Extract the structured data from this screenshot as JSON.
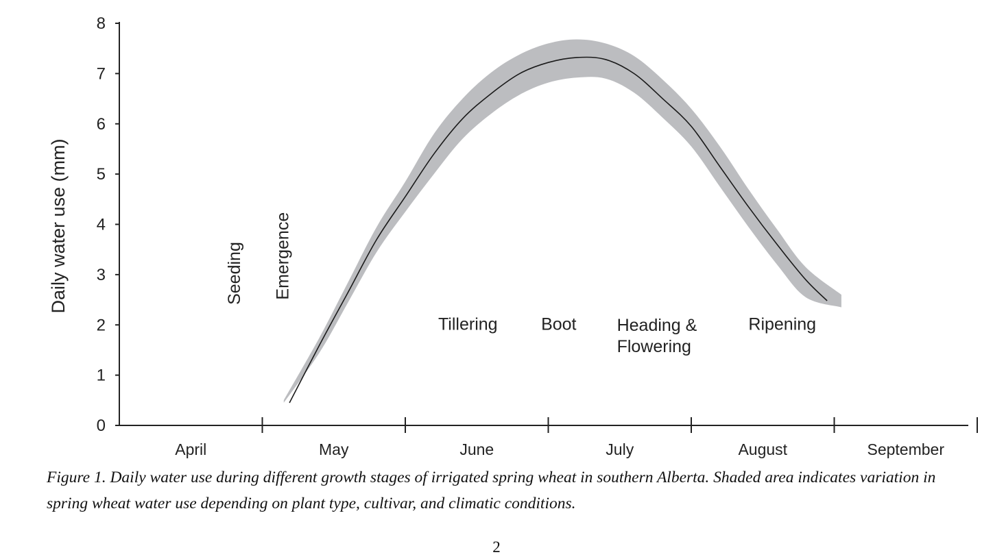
{
  "chart_data": {
    "type": "area",
    "title": "",
    "xlabel": "",
    "ylabel": "Daily water use  (mm)",
    "ylim": [
      0,
      8
    ],
    "yticks": [
      0,
      1,
      2,
      3,
      4,
      5,
      6,
      7,
      8
    ],
    "x_unit": "month",
    "xlim": [
      0,
      6
    ],
    "months": [
      "April",
      "May",
      "June",
      "July",
      "August",
      "September"
    ],
    "grid": false,
    "legend": "none",
    "mean_line": {
      "x": [
        1.19,
        1.4,
        1.6,
        1.8,
        2.0,
        2.2,
        2.4,
        2.6,
        2.8,
        3.0,
        3.2,
        3.4,
        3.6,
        3.8,
        4.0,
        4.2,
        4.4,
        4.6,
        4.8,
        4.95
      ],
      "y": [
        0.45,
        1.6,
        2.65,
        3.7,
        4.55,
        5.4,
        6.1,
        6.6,
        7.0,
        7.22,
        7.32,
        7.28,
        7.0,
        6.5,
        5.95,
        5.15,
        4.35,
        3.6,
        2.9,
        2.48
      ]
    },
    "variation_band": {
      "x": [
        1.15,
        1.4,
        1.6,
        1.8,
        2.0,
        2.2,
        2.4,
        2.6,
        2.8,
        3.0,
        3.2,
        3.4,
        3.6,
        3.8,
        4.0,
        4.2,
        4.4,
        4.6,
        4.8,
        5.05
      ],
      "upper": [
        0.5,
        1.75,
        2.85,
        3.95,
        4.85,
        5.8,
        6.5,
        7.02,
        7.38,
        7.6,
        7.68,
        7.6,
        7.35,
        6.88,
        6.3,
        5.55,
        4.7,
        3.9,
        3.15,
        2.6
      ],
      "lower": [
        0.45,
        1.45,
        2.45,
        3.45,
        4.25,
        5.0,
        5.7,
        6.2,
        6.58,
        6.82,
        6.92,
        6.9,
        6.62,
        6.12,
        5.55,
        4.75,
        3.95,
        3.2,
        2.55,
        2.35
      ]
    },
    "stages": [
      {
        "label": "Seeding",
        "x": 0.8,
        "y": 2.4,
        "vertical": true
      },
      {
        "label": "Emergence",
        "x": 1.14,
        "y": 2.5,
        "vertical": true
      },
      {
        "label": "Tillering",
        "x": 2.23,
        "y": 1.9
      },
      {
        "label": "Boot",
        "x": 2.95,
        "y": 1.9
      },
      {
        "label": [
          "Heading &",
          "Flowering"
        ],
        "x": 3.48,
        "y": 1.88
      },
      {
        "label": "Ripening",
        "x": 4.4,
        "y": 1.9
      }
    ],
    "colors": {
      "band": "#bcbdc0",
      "line": "#1a1a1a",
      "axis": "#222222"
    }
  },
  "caption": "Figure 1. Daily water use during different growth stages of irrigated spring wheat in southern Alberta. Shaded area indicates variation in spring wheat water use depending on plant type, cultivar, and climatic conditions.",
  "page_number": "2"
}
